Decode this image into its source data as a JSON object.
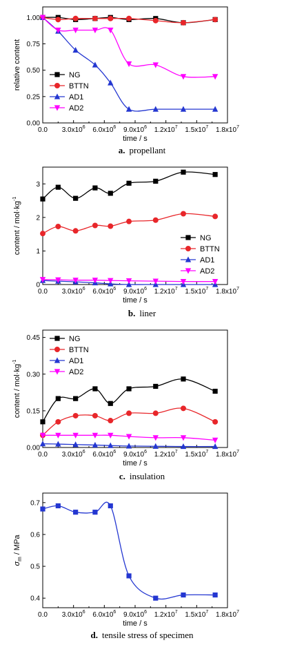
{
  "colors": {
    "NG": "#000000",
    "BTTN": "#e8262a",
    "AD1": "#2437d1",
    "AD2": "#ff00ff",
    "stress": "#2437d1"
  },
  "chart_data": [
    {
      "id": "a",
      "type": "line",
      "caption_letter": "a.",
      "caption_text": "propellant",
      "xlabel": "time / s",
      "ylabel": "relative content",
      "xlim": [
        0,
        18000000
      ],
      "ylim": [
        0,
        1.1
      ],
      "xticks": [
        0,
        3000000,
        6000000,
        9000000,
        12000000,
        15000000,
        18000000
      ],
      "xtick_labels": [
        "0.0",
        "3.0x10^6",
        "6.0x10^6",
        "9.0x10^6",
        "1.2x10^7",
        "1.5x10^7",
        "1.8x10^7"
      ],
      "yticks": [
        0,
        0.25,
        0.5,
        0.75,
        1.0
      ],
      "ytick_labels": [
        "0.00",
        "0.25",
        "0.50",
        "0.75",
        "1.00"
      ],
      "legend": "top-left",
      "x": [
        0,
        1500000,
        3200000,
        5100000,
        6600000,
        8400000,
        11000000,
        13700000,
        16800000
      ],
      "series": [
        {
          "name": "NG",
          "marker": "square",
          "values": [
            1.0,
            1.0,
            0.98,
            0.99,
            1.0,
            0.98,
            0.99,
            0.95,
            0.98
          ]
        },
        {
          "name": "BTTN",
          "marker": "circle",
          "values": [
            1.0,
            0.98,
            0.99,
            0.99,
            0.99,
            0.99,
            0.97,
            0.95,
            0.98
          ]
        },
        {
          "name": "AD1",
          "marker": "triangle-up",
          "values": [
            1.0,
            0.87,
            0.69,
            0.55,
            0.38,
            0.13,
            0.13,
            0.13,
            0.13
          ]
        },
        {
          "name": "AD2",
          "marker": "triangle-down",
          "values": [
            1.0,
            0.88,
            0.88,
            0.88,
            0.88,
            0.56,
            0.55,
            0.44,
            0.44
          ]
        }
      ]
    },
    {
      "id": "b",
      "type": "line",
      "caption_letter": "b.",
      "caption_text": "liner",
      "xlabel": "time / s",
      "ylabel": "content / mol·kg^-1",
      "xlim": [
        0,
        18000000
      ],
      "ylim": [
        0,
        3.5
      ],
      "xticks": [
        0,
        3000000,
        6000000,
        9000000,
        12000000,
        15000000,
        18000000
      ],
      "xtick_labels": [
        "0.0",
        "3.0x10^6",
        "6.0x10^6",
        "9.0x10^6",
        "1.2x10^7",
        "1.5x10^7",
        "1.8x10^7"
      ],
      "yticks": [
        0,
        1,
        2,
        3
      ],
      "ytick_labels": [
        "0",
        "1",
        "2",
        "3"
      ],
      "legend": "bottom-right",
      "x": [
        0,
        1500000,
        3200000,
        5100000,
        6600000,
        8400000,
        11000000,
        13700000,
        16800000
      ],
      "series": [
        {
          "name": "NG",
          "marker": "square",
          "values": [
            2.55,
            2.9,
            2.57,
            2.88,
            2.72,
            3.02,
            3.08,
            3.35,
            3.28
          ]
        },
        {
          "name": "BTTN",
          "marker": "circle",
          "values": [
            1.52,
            1.73,
            1.6,
            1.76,
            1.74,
            1.88,
            1.92,
            2.11,
            2.03
          ]
        },
        {
          "name": "AD1",
          "marker": "triangle-up",
          "values": [
            0.12,
            0.1,
            0.08,
            0.05,
            0.02,
            0.0,
            0.0,
            0.0,
            0.0
          ]
        },
        {
          "name": "AD2",
          "marker": "triangle-down",
          "values": [
            0.15,
            0.14,
            0.13,
            0.13,
            0.12,
            0.11,
            0.1,
            0.09,
            0.09
          ]
        }
      ]
    },
    {
      "id": "c",
      "type": "line",
      "caption_letter": "c.",
      "caption_text": "insulation",
      "xlabel": "time / s",
      "ylabel": "content / mol·kg^-1",
      "xlim": [
        0,
        18000000
      ],
      "ylim": [
        0,
        0.48
      ],
      "xticks": [
        0,
        3000000,
        6000000,
        9000000,
        12000000,
        15000000,
        18000000
      ],
      "xtick_labels": [
        "0.0",
        "3.0x10^6",
        "6.0x10^6",
        "9.0x10^6",
        "1.2x10^7",
        "1.5x10^7",
        "1.8x10^7"
      ],
      "yticks": [
        0,
        0.15,
        0.3,
        0.45
      ],
      "ytick_labels": [
        "0.00",
        "0.15",
        "0.30",
        "0.45"
      ],
      "legend": "top-left",
      "x": [
        0,
        1500000,
        3200000,
        5100000,
        6600000,
        8400000,
        11000000,
        13700000,
        16800000
      ],
      "series": [
        {
          "name": "NG",
          "marker": "square",
          "values": [
            0.105,
            0.2,
            0.2,
            0.24,
            0.18,
            0.24,
            0.25,
            0.28,
            0.23
          ]
        },
        {
          "name": "BTTN",
          "marker": "circle",
          "values": [
            0.05,
            0.105,
            0.13,
            0.13,
            0.11,
            0.14,
            0.14,
            0.16,
            0.105
          ]
        },
        {
          "name": "AD1",
          "marker": "triangle-up",
          "values": [
            0.015,
            0.014,
            0.012,
            0.01,
            0.008,
            0.006,
            0.005,
            0.004,
            0.004
          ]
        },
        {
          "name": "AD2",
          "marker": "triangle-down",
          "values": [
            0.05,
            0.05,
            0.05,
            0.05,
            0.05,
            0.045,
            0.04,
            0.04,
            0.03
          ]
        }
      ]
    },
    {
      "id": "d",
      "type": "line",
      "caption_letter": "d.",
      "caption_text": "tensile stress of specimen",
      "xlabel": "time / s",
      "ylabel": "σm / MPa",
      "xlim": [
        0,
        18000000
      ],
      "ylim": [
        0.37,
        0.73
      ],
      "xticks": [
        0,
        3000000,
        6000000,
        9000000,
        12000000,
        15000000,
        18000000
      ],
      "xtick_labels": [
        "0.0",
        "3.0x10^6",
        "6.0x10^6",
        "9.0x10^6",
        "1.2x10^7",
        "1.5x10^7",
        "1.8x10^7"
      ],
      "yticks": [
        0.4,
        0.5,
        0.6,
        0.7
      ],
      "ytick_labels": [
        "0.4",
        "0.5",
        "0.6",
        "0.7"
      ],
      "legend": "none",
      "x": [
        0,
        1500000,
        3200000,
        5100000,
        6600000,
        8400000,
        11000000,
        13700000,
        16800000
      ],
      "series": [
        {
          "name": "",
          "marker": "square",
          "values": [
            0.68,
            0.69,
            0.67,
            0.67,
            0.69,
            0.47,
            0.4,
            0.41,
            0.41
          ]
        }
      ]
    }
  ]
}
